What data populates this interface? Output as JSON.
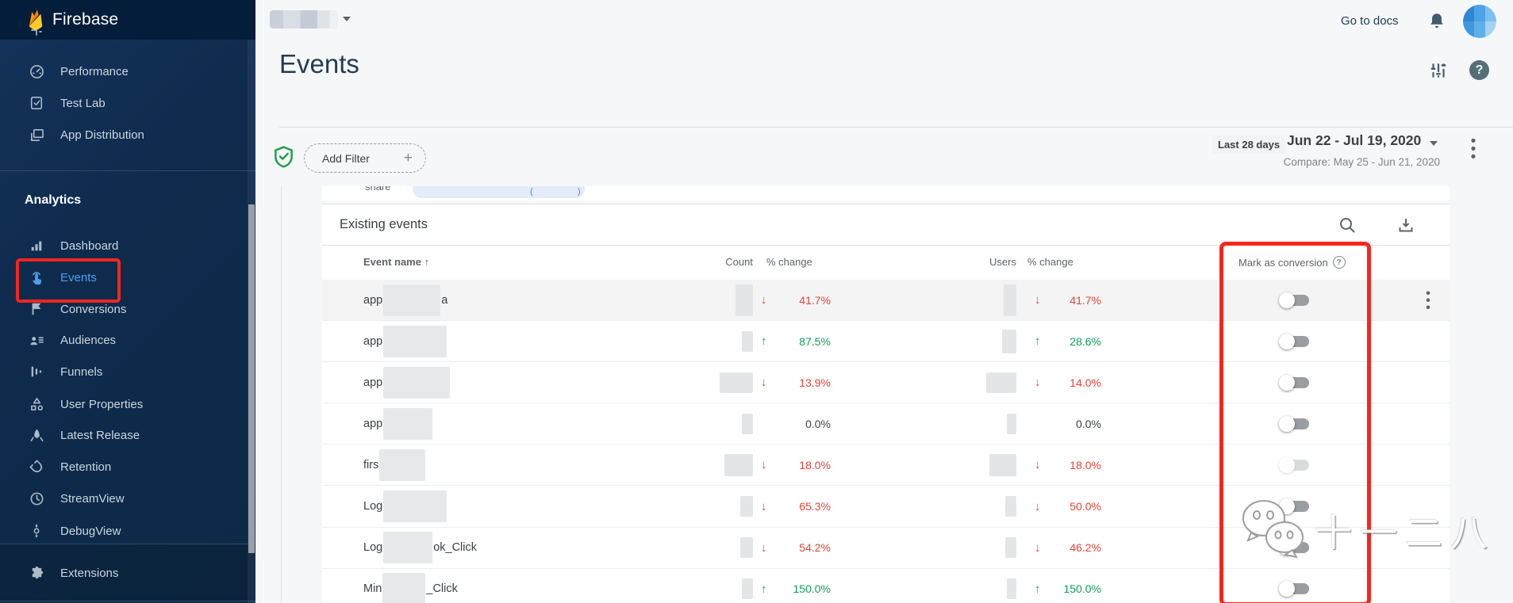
{
  "sidebar": {
    "brand": "Firebase",
    "top_items": [
      {
        "label": "Performance",
        "icon": "speedometer-icon"
      },
      {
        "label": "Test Lab",
        "icon": "clipboard-check-icon"
      },
      {
        "label": "App Distribution",
        "icon": "app-distribution-icon"
      }
    ],
    "section_title": "Analytics",
    "analytics_items": [
      {
        "label": "Dashboard",
        "icon": "bar-chart-icon",
        "active": false
      },
      {
        "label": "Events",
        "icon": "tap-icon",
        "active": true
      },
      {
        "label": "Conversions",
        "icon": "flag-icon",
        "active": false
      },
      {
        "label": "Audiences",
        "icon": "people-icon",
        "active": false
      },
      {
        "label": "Funnels",
        "icon": "funnel-bars-icon",
        "active": false
      },
      {
        "label": "User Properties",
        "icon": "shapes-icon",
        "active": false
      },
      {
        "label": "Latest Release",
        "icon": "rocket-icon",
        "active": false
      },
      {
        "label": "Retention",
        "icon": "magnet-icon",
        "active": false
      },
      {
        "label": "StreamView",
        "icon": "clock-icon",
        "active": false
      },
      {
        "label": "DebugView",
        "icon": "debug-route-icon",
        "active": false
      }
    ],
    "bottom_items": [
      {
        "label": "Extensions",
        "icon": "puzzle-icon"
      }
    ]
  },
  "topbar": {
    "go_to_docs": "Go to docs"
  },
  "page": {
    "title": "Events"
  },
  "filterbar": {
    "add_filter_label": "Add Filter",
    "plus": "+",
    "range_badge": "Last 28 days",
    "date_range": "Jun 22 - Jul 19, 2020",
    "compare": "Compare: May 25 - Jun 21, 2020"
  },
  "remnant": {
    "clipped_text": "share",
    "paren_open": "(",
    "paren_close": ")"
  },
  "table": {
    "title": "Existing events",
    "columns": [
      "Event name",
      "Count",
      "% change",
      "Users",
      "% change",
      "Mark as conversion"
    ],
    "sort_arrow": "↑",
    "help_glyph": "?",
    "rows": [
      {
        "prefix": "app",
        "suffix": "a",
        "blur_w": 72,
        "count_w": 22,
        "count_h": 40,
        "change": "41.7%",
        "dir": "down",
        "users_w": 16,
        "users_h": 40,
        "users_change": "41.7%",
        "users_dir": "down",
        "toggle": "off",
        "faded": false,
        "menu": true,
        "highlight": true
      },
      {
        "prefix": "app",
        "suffix": "",
        "blur_w": 80,
        "count_w": 14,
        "count_h": 26,
        "change": "87.5%",
        "dir": "up",
        "users_w": 18,
        "users_h": 30,
        "users_change": "28.6%",
        "users_dir": "up",
        "toggle": "off",
        "faded": false,
        "menu": false,
        "highlight": false
      },
      {
        "prefix": "app",
        "suffix": "",
        "blur_w": 84,
        "count_w": 42,
        "count_h": 26,
        "change": "13.9%",
        "dir": "down",
        "users_w": 38,
        "users_h": 26,
        "users_change": "14.0%",
        "users_dir": "down",
        "toggle": "off",
        "faded": false,
        "menu": false,
        "highlight": false
      },
      {
        "prefix": "app",
        "suffix": "",
        "blur_w": 62,
        "count_w": 14,
        "count_h": 26,
        "change": "0.0%",
        "dir": "flat",
        "users_w": 12,
        "users_h": 26,
        "users_change": "0.0%",
        "users_dir": "flat",
        "toggle": "off",
        "faded": false,
        "menu": false,
        "highlight": false
      },
      {
        "prefix": "firs",
        "suffix": "",
        "blur_w": 58,
        "count_w": 36,
        "count_h": 28,
        "change": "18.0%",
        "dir": "down",
        "users_w": 34,
        "users_h": 28,
        "users_change": "18.0%",
        "users_dir": "down",
        "toggle": "off",
        "faded": true,
        "menu": false,
        "highlight": false
      },
      {
        "prefix": "Log",
        "suffix": "",
        "blur_w": 80,
        "count_w": 16,
        "count_h": 26,
        "change": "65.3%",
        "dir": "down",
        "users_w": 14,
        "users_h": 26,
        "users_change": "50.0%",
        "users_dir": "down",
        "toggle": "off",
        "faded": false,
        "menu": false,
        "highlight": false
      },
      {
        "prefix": "Log",
        "suffix": "ok_Click",
        "blur_w": 62,
        "count_w": 16,
        "count_h": 26,
        "change": "54.2%",
        "dir": "down",
        "users_w": 14,
        "users_h": 26,
        "users_change": "46.2%",
        "users_dir": "down",
        "toggle": "off",
        "faded": false,
        "menu": false,
        "highlight": false
      },
      {
        "prefix": "Min",
        "suffix": "_Click",
        "blur_w": 54,
        "count_w": 14,
        "count_h": 26,
        "change": "150.0%",
        "dir": "up",
        "users_w": 12,
        "users_h": 26,
        "users_change": "150.0%",
        "users_dir": "up",
        "toggle": "off",
        "faded": false,
        "menu": false,
        "highlight": false
      }
    ]
  },
  "watermark": {
    "text": "十一二八"
  },
  "colors": {
    "sidebar_header": "#041d3a",
    "sidebar_bg": "#0e2b4d",
    "accent_blue": "#4d9fec",
    "positive_green": "#0f9d58",
    "negative_red": "#ea4335",
    "annotation_red": "#f5261d",
    "card_bg": "#ffffff",
    "page_bg": "#f6f7f8"
  }
}
